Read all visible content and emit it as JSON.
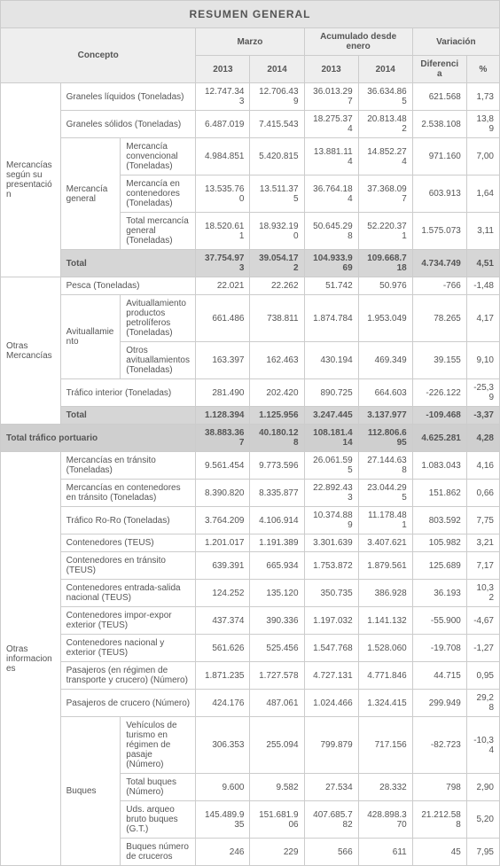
{
  "title": "RESUMEN GENERAL",
  "headers": {
    "concept": "Concepto",
    "marzo": "Marzo",
    "acumulado": "Acumulado desde enero",
    "variacion": "Variación",
    "y2013": "2013",
    "y2014": "2014",
    "dif": "Diferencia",
    "pct": "%"
  },
  "groups": [
    {
      "label": "Mercancías según su presentación",
      "rows": [
        {
          "l2": "Graneles líquidos (Toneladas)",
          "span2": true,
          "v": [
            "12.747.343",
            "12.706.439",
            "36.013.297",
            "36.634.865",
            "621.568",
            "1,73"
          ]
        },
        {
          "l2": "Graneles sólidos (Toneladas)",
          "span2": true,
          "v": [
            "6.487.019",
            "7.415.543",
            "18.275.374",
            "20.813.482",
            "2.538.108",
            "13,89"
          ]
        },
        {
          "l2": "Mercancía general",
          "l2rows": 3,
          "l3": "Mercancía convencional (Toneladas)",
          "v": [
            "4.984.851",
            "5.420.815",
            "13.881.114",
            "14.852.274",
            "971.160",
            "7,00"
          ]
        },
        {
          "l3": "Mercancía en contenedores (Toneladas)",
          "v": [
            "13.535.760",
            "13.511.375",
            "36.764.184",
            "37.368.097",
            "603.913",
            "1,64"
          ]
        },
        {
          "l3": "Total mercancía general (Toneladas)",
          "v": [
            "18.520.611",
            "18.932.190",
            "50.645.298",
            "52.220.371",
            "1.575.073",
            "3,11"
          ]
        }
      ],
      "total": {
        "label": "Total",
        "v": [
          "37.754.973",
          "39.054.172",
          "104.933.969",
          "109.668.718",
          "4.734.749",
          "4,51"
        ]
      }
    },
    {
      "label": "Otras Mercancías",
      "rows": [
        {
          "l2": "Pesca (Toneladas)",
          "span2": true,
          "v": [
            "22.021",
            "22.262",
            "51.742",
            "50.976",
            "-766",
            "-1,48"
          ]
        },
        {
          "l2": "Avituallamiento",
          "l2rows": 2,
          "l3": "Avituallamiento productos petrolíferos (Toneladas)",
          "v": [
            "661.486",
            "738.811",
            "1.874.784",
            "1.953.049",
            "78.265",
            "4,17"
          ]
        },
        {
          "l3": "Otros avituallamientos (Toneladas)",
          "v": [
            "163.397",
            "162.463",
            "430.194",
            "469.349",
            "39.155",
            "9,10"
          ]
        },
        {
          "l2": "Tráfico interior (Toneladas)",
          "span2": true,
          "v": [
            "281.490",
            "202.420",
            "890.725",
            "664.603",
            "-226.122",
            "-25,39"
          ]
        }
      ],
      "total": {
        "label": "Total",
        "v": [
          "1.128.394",
          "1.125.956",
          "3.247.445",
          "3.137.977",
          "-109.468",
          "-3,37"
        ]
      }
    }
  ],
  "grand": {
    "label": "Total tráfico portuario",
    "v": [
      "38.883.367",
      "40.180.128",
      "108.181.414",
      "112.806.695",
      "4.625.281",
      "4,28"
    ]
  },
  "otras_info": {
    "label": "Otras informaciones",
    "rows": [
      {
        "l2": "Mercancías en tránsito (Toneladas)",
        "span2": true,
        "v": [
          "9.561.454",
          "9.773.596",
          "26.061.595",
          "27.144.638",
          "1.083.043",
          "4,16"
        ]
      },
      {
        "l2": "Mercancías en contenedores en tránsito (Toneladas)",
        "span2": true,
        "v": [
          "8.390.820",
          "8.335.877",
          "22.892.433",
          "23.044.295",
          "151.862",
          "0,66"
        ]
      },
      {
        "l2": "Tráfico Ro-Ro (Toneladas)",
        "span2": true,
        "v": [
          "3.764.209",
          "4.106.914",
          "10.374.889",
          "11.178.481",
          "803.592",
          "7,75"
        ]
      },
      {
        "l2": "Contenedores (TEUS)",
        "span2": true,
        "v": [
          "1.201.017",
          "1.191.389",
          "3.301.639",
          "3.407.621",
          "105.982",
          "3,21"
        ]
      },
      {
        "l2": "Contenedores en tránsito (TEUS)",
        "span2": true,
        "v": [
          "639.391",
          "665.934",
          "1.753.872",
          "1.879.561",
          "125.689",
          "7,17"
        ]
      },
      {
        "l2": "Contenedores entrada-salida nacional (TEUS)",
        "span2": true,
        "v": [
          "124.252",
          "135.120",
          "350.735",
          "386.928",
          "36.193",
          "10,32"
        ]
      },
      {
        "l2": "Contenedores impor-expor exterior (TEUS)",
        "span2": true,
        "v": [
          "437.374",
          "390.336",
          "1.197.032",
          "1.141.132",
          "-55.900",
          "-4,67"
        ]
      },
      {
        "l2": "Contenedores nacional y exterior (TEUS)",
        "span2": true,
        "v": [
          "561.626",
          "525.456",
          "1.547.768",
          "1.528.060",
          "-19.708",
          "-1,27"
        ]
      },
      {
        "l2": "Pasajeros (en régimen de transporte y crucero) (Número)",
        "span2": true,
        "v": [
          "1.871.235",
          "1.727.578",
          "4.727.131",
          "4.771.846",
          "44.715",
          "0,95"
        ]
      },
      {
        "l2": "Pasajeros de crucero (Número)",
        "span2": true,
        "v": [
          "424.176",
          "487.061",
          "1.024.466",
          "1.324.415",
          "299.949",
          "29,28"
        ]
      },
      {
        "l2": "Buques",
        "l2rows": 4,
        "l3": "Vehículos de turismo en régimen de pasaje (Número)",
        "v": [
          "306.353",
          "255.094",
          "799.879",
          "717.156",
          "-82.723",
          "-10,34"
        ]
      },
      {
        "l3": "Total buques (Número)",
        "v": [
          "9.600",
          "9.582",
          "27.534",
          "28.332",
          "798",
          "2,90"
        ]
      },
      {
        "l3": "Uds. arqueo bruto buques (G.T.)",
        "v": [
          "145.489.935",
          "151.681.906",
          "407.685.782",
          "428.898.370",
          "21.212.588",
          "5,20"
        ]
      },
      {
        "l3": "Buques número de cruceros",
        "v": [
          "246",
          "229",
          "566",
          "611",
          "45",
          "7,95"
        ]
      }
    ]
  }
}
